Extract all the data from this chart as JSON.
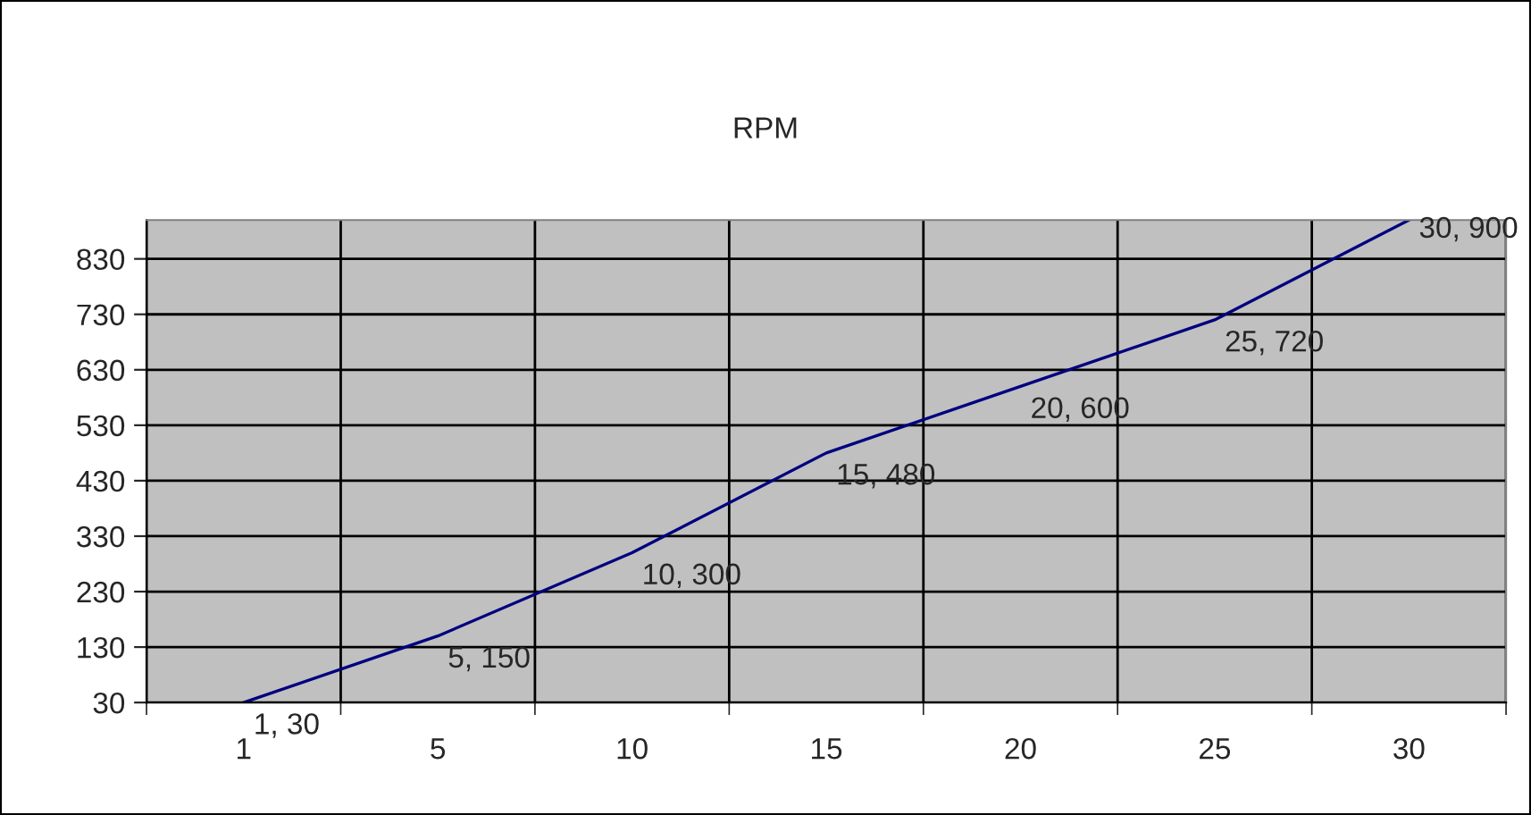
{
  "chart_data": {
    "type": "line",
    "title": "RPM",
    "categories": [
      "1",
      "5",
      "10",
      "15",
      "20",
      "25",
      "30"
    ],
    "series": [
      {
        "color": "#000080",
        "values": [
          30,
          150,
          300,
          480,
          600,
          720,
          900
        ]
      }
    ],
    "value_labels": [
      "1, 30",
      "5, 150",
      "10, 300",
      "15, 480",
      "20, 600",
      "25, 720",
      "30, 900"
    ],
    "ylim": [
      30,
      900
    ],
    "yticks": [
      30,
      130,
      230,
      330,
      430,
      530,
      630,
      730,
      830
    ],
    "grid": true,
    "marker": "none",
    "line_style": "solid"
  }
}
